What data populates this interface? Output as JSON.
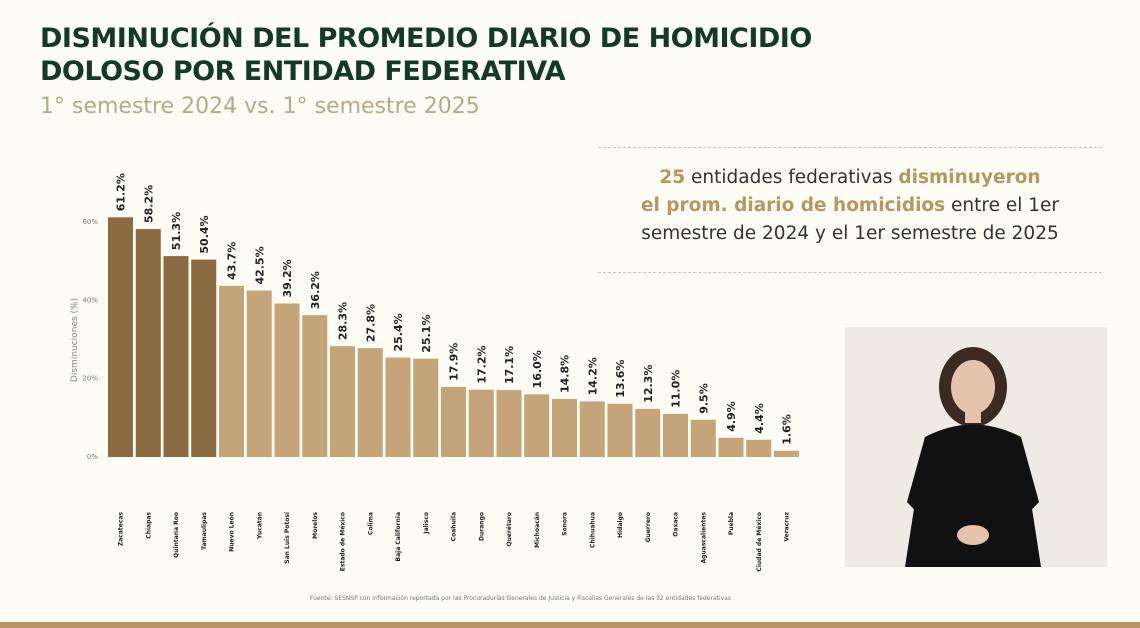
{
  "header": {
    "title_line1": "DISMINUCIÓN DEL PROMEDIO DIARIO DE HOMICIDIO",
    "title_line2": "DOLOSO POR ENTIDAD FEDERATIVA",
    "subtitle": "1° semestre 2024 vs. 1° semestre 2025"
  },
  "callout": {
    "count": "25",
    "t1": " entidades federativas ",
    "h1": "disminuyeron",
    "h2": "el prom. diario de homicidios",
    "t2": " entre el 1er",
    "t3": "semestre de 2024 y el 1er semestre de 2025"
  },
  "source": "Fuente: SESNSP con información reportada por las Procuradurías Generales de Justicia y Fiscalías Generales de las 32 entidades federativas",
  "chart_data": {
    "type": "bar",
    "ylabel": "Disminuciones (%)",
    "ylim": [
      0,
      60
    ],
    "yticks": [
      "0%",
      "20%",
      "40%",
      "60%"
    ],
    "grid": false,
    "categories": [
      "Zacatecas",
      "Chiapas",
      "Quintana Roo",
      "Tamaulipas",
      "Nuevo León",
      "Yucatán",
      "San Luis Potosí",
      "Morelos",
      "Estado de México",
      "Colima",
      "Baja California",
      "Jalisco",
      "Coahuila",
      "Durango",
      "Querétaro",
      "Michoacán",
      "Sonora",
      "Chihuahua",
      "Hidalgo",
      "Guerrero",
      "Oaxaca",
      "Aguascalientes",
      "Puebla",
      "Ciudad de México",
      "Veracruz"
    ],
    "values": [
      61.2,
      58.2,
      51.3,
      50.4,
      43.7,
      42.5,
      39.2,
      36.2,
      28.3,
      27.8,
      25.4,
      25.1,
      17.9,
      17.2,
      17.1,
      16.0,
      14.8,
      14.2,
      13.6,
      12.3,
      11.0,
      9.5,
      4.9,
      4.4,
      1.6
    ],
    "labels": [
      "61.2%",
      "58.2%",
      "51.3%",
      "50.4%",
      "43.7%",
      "42.5%",
      "39.2%",
      "36.2%",
      "28.3%",
      "27.8%",
      "25.4%",
      "25.1%",
      "17.9%",
      "17.2%",
      "17.1%",
      "16.0%",
      "14.8%",
      "14.2%",
      "13.6%",
      "12.3%",
      "11.0%",
      "9.5%",
      "4.9%",
      "4.4%",
      "1.6%"
    ],
    "colors": {
      "top4": "#8c6a42",
      "rest": "#c6a479"
    }
  },
  "colors": {
    "title": "#133a24",
    "accent": "#b9955f",
    "subtitle": "#b7a889"
  }
}
